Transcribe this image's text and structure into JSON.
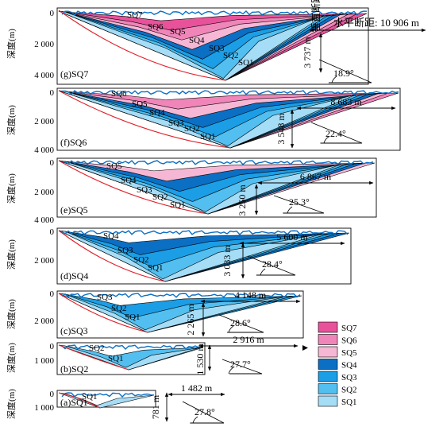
{
  "depth_axis_label": "深度(m)",
  "horizontal_label_prefix": "水平断距: ",
  "vertical_label": "垂直断距",
  "legend": {
    "items": [
      {
        "name": "SQ7",
        "color": "#e8529a"
      },
      {
        "name": "SQ6",
        "color": "#ef85b8"
      },
      {
        "name": "SQ5",
        "color": "#f6b7d5"
      },
      {
        "name": "SQ4",
        "color": "#0b6fc4"
      },
      {
        "name": "SQ3",
        "color": "#1b9ee6"
      },
      {
        "name": "SQ2",
        "color": "#52bff0"
      },
      {
        "name": "SQ1",
        "color": "#a5dcf6"
      }
    ]
  },
  "panels": [
    {
      "id": "g",
      "label": "(g)SQ7",
      "depth_ticks": [
        "0",
        "2 000",
        "4 000"
      ],
      "horizontal_distance": "10 906 m",
      "vertical_distance": "3 737 m",
      "angle": "18.9°",
      "sequence_labels": [
        "SQ7",
        "SQ6",
        "SQ5",
        "SQ4",
        "SQ3",
        "SQ2",
        "SQ1"
      ]
    },
    {
      "id": "f",
      "label": "(f)SQ6",
      "depth_ticks": [
        "0",
        "2 000",
        "4 000"
      ],
      "horizontal_distance": "8 683 m",
      "vertical_distance": "3 548 m",
      "angle": "22.4°",
      "sequence_labels": [
        "SQ6",
        "SQ5",
        "SQ4",
        "SQ3",
        "SQ2",
        "SQ1"
      ]
    },
    {
      "id": "e",
      "label": "(e)SQ5",
      "depth_ticks": [
        "0",
        "2 000",
        "4 000"
      ],
      "horizontal_distance": "6 867 m",
      "vertical_distance": "3 250 m",
      "angle": "25.3°",
      "sequence_labels": [
        "SQ5",
        "SQ4",
        "SQ3",
        "SQ2",
        "SQ1"
      ]
    },
    {
      "id": "d",
      "label": "(d)SQ4",
      "depth_ticks": [
        "0",
        "2 000"
      ],
      "horizontal_distance": "5 600 m",
      "vertical_distance": "3 033 m",
      "angle": "28.4°",
      "sequence_labels": [
        "SQ4",
        "SQ3",
        "SQ2",
        "SQ1"
      ]
    },
    {
      "id": "c",
      "label": "(c)SQ3",
      "depth_ticks": [
        "0",
        "2 000"
      ],
      "horizontal_distance": "4 148 m",
      "vertical_distance": "2 265 m",
      "angle": "28.6°",
      "sequence_labels": [
        "SQ3",
        "SQ2",
        "SQ1"
      ]
    },
    {
      "id": "b",
      "label": "(b)SQ2",
      "depth_ticks": [
        "0",
        "1 000"
      ],
      "horizontal_distance": "2 916 m",
      "vertical_distance": "1 530 m",
      "angle": "27.7°",
      "sequence_labels": [
        "SQ2",
        "SQ1"
      ]
    },
    {
      "id": "a",
      "label": "(a)SQ1",
      "depth_ticks": [
        "0",
        "1 000"
      ],
      "horizontal_distance": "1 482 m",
      "vertical_distance": "781 m",
      "angle": "27.8°",
      "sequence_labels": [
        "SQ1"
      ]
    }
  ]
}
